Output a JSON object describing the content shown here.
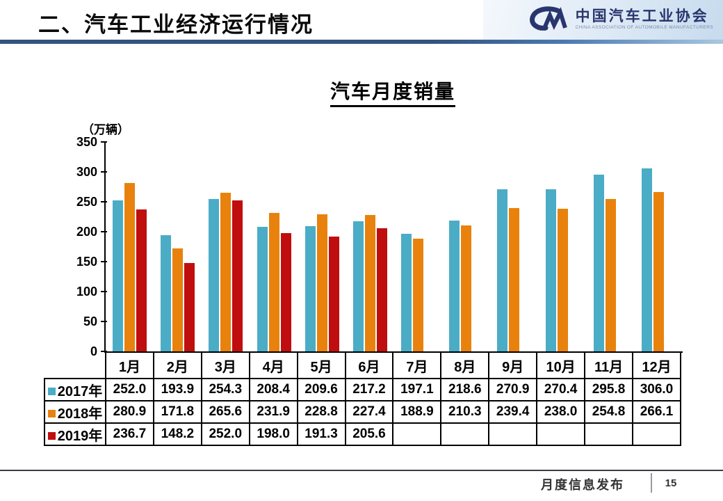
{
  "header": {
    "title": "二、汽车工业经济运行情况",
    "logo": {
      "name_cn": "中国汽车工业协会",
      "name_en": "CHINA ASSOCIATION OF AUTOMOBILE MANUFACTURERS",
      "mark_color": "#28356e"
    }
  },
  "chart_data": {
    "type": "bar",
    "title": "汽车月度销量",
    "unit_label": "（万辆）",
    "categories": [
      "1月",
      "2月",
      "3月",
      "4月",
      "5月",
      "6月",
      "7月",
      "8月",
      "9月",
      "10月",
      "11月",
      "12月"
    ],
    "series": [
      {
        "name": "2017年",
        "color": "#4BACC6",
        "values": [
          252.0,
          193.9,
          254.3,
          208.4,
          209.6,
          217.2,
          197.1,
          218.6,
          270.9,
          270.4,
          295.8,
          306.0
        ]
      },
      {
        "name": "2018年",
        "color": "#E8820D",
        "values": [
          280.9,
          171.8,
          265.6,
          231.9,
          228.8,
          227.4,
          188.9,
          210.3,
          239.4,
          238.0,
          254.8,
          266.1
        ]
      },
      {
        "name": "2019年",
        "color": "#C00E0E",
        "values": [
          236.7,
          148.2,
          252.0,
          198.0,
          191.3,
          205.6,
          null,
          null,
          null,
          null,
          null,
          null
        ]
      }
    ],
    "ylim": [
      0,
      350
    ],
    "yticks": [
      350,
      300,
      250,
      200,
      150,
      100,
      50,
      0
    ],
    "grid": false,
    "legend_position": "table-row-labels"
  },
  "footer": {
    "label": "月度信息发布",
    "page_number": "15"
  }
}
